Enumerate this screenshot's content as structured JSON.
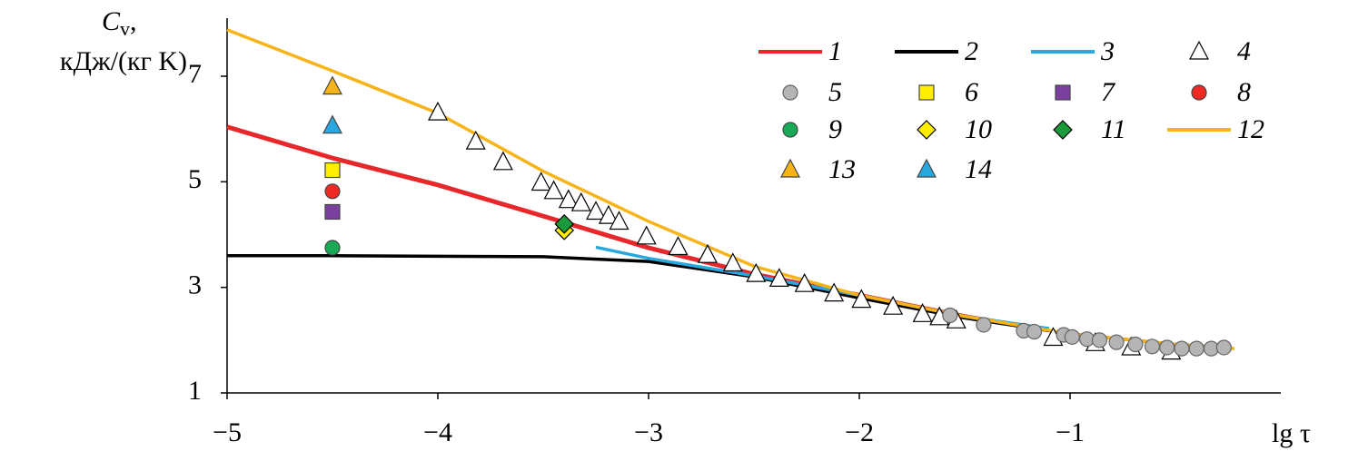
{
  "chart_data": {
    "type": "line",
    "xlabel": "lg τ",
    "ylabel_symbol": "C",
    "ylabel_subscript": "v",
    "ylabel_comma": ",",
    "ylabel_unit": "кДж/(кг K)",
    "xlim": [
      -5,
      0
    ],
    "ylim": [
      1,
      8.1
    ],
    "xticks": [
      {
        "value": -5,
        "label": "−5"
      },
      {
        "value": -4,
        "label": "−4"
      },
      {
        "value": -3,
        "label": "−3"
      },
      {
        "value": -2,
        "label": "−2"
      },
      {
        "value": -1,
        "label": "−1"
      }
    ],
    "yticks": [
      1,
      3,
      5,
      7
    ],
    "series": [
      {
        "name": "1",
        "color": "#e8272a",
        "marker": "none",
        "x": [
          -5,
          -4.5,
          -4,
          -3.5,
          -3,
          -2.5,
          -2,
          -1.5,
          -1.2
        ],
        "values": [
          6.04,
          5.45,
          4.94,
          4.35,
          3.75,
          3.25,
          2.85,
          2.45,
          2.25
        ]
      },
      {
        "name": "2",
        "color": "#000000",
        "marker": "none",
        "x": [
          -5,
          -4.5,
          -4,
          -3.5,
          -3,
          -2.5,
          -2,
          -1.5,
          -1,
          -0.5,
          -0.3
        ],
        "values": [
          3.6,
          3.6,
          3.59,
          3.58,
          3.49,
          3.2,
          2.8,
          2.42,
          2.12,
          1.92,
          1.87
        ]
      },
      {
        "name": "3",
        "color": "#29a8e0",
        "marker": "none",
        "x": [
          -3.25,
          -3,
          -2.5,
          -2,
          -1.5,
          -1.1
        ],
        "values": [
          3.76,
          3.55,
          3.22,
          2.85,
          2.45,
          2.22
        ]
      },
      {
        "name": "4",
        "color": "#ffffff",
        "marker": "triangle",
        "x": [
          -4,
          -3.82,
          -3.69,
          -3.51,
          -3.45,
          -3.38,
          -3.32,
          -3.25,
          -3.19,
          -3.14,
          -3.01,
          -2.86,
          -2.72,
          -2.6,
          -2.49,
          -2.38,
          -2.26,
          -2.12,
          -1.99,
          -1.84,
          -1.7,
          -1.62,
          -1.54,
          -1.08,
          -0.88,
          -0.71,
          -0.52
        ],
        "values": [
          6.31,
          5.76,
          5.37,
          4.98,
          4.82,
          4.65,
          4.59,
          4.43,
          4.35,
          4.24,
          3.96,
          3.76,
          3.61,
          3.45,
          3.25,
          3.16,
          3.06,
          2.88,
          2.76,
          2.63,
          2.49,
          2.43,
          2.37,
          2.04,
          1.94,
          1.86,
          1.78
        ]
      },
      {
        "name": "5",
        "color": "#b4b4b4",
        "marker": "circle",
        "x": [
          -1.57,
          -1.41,
          -1.22,
          -1.17,
          -1.03,
          -0.99,
          -0.92,
          -0.86,
          -0.78,
          -0.69,
          -0.61,
          -0.54,
          -0.47,
          -0.4,
          -0.33,
          -0.27
        ],
        "values": [
          2.47,
          2.29,
          2.18,
          2.16,
          2.1,
          2.06,
          2.02,
          2.0,
          1.96,
          1.92,
          1.88,
          1.86,
          1.84,
          1.84,
          1.84,
          1.86
        ]
      },
      {
        "name": "6",
        "color": "#ffee00",
        "marker": "square",
        "x": [
          -4.5
        ],
        "values": [
          5.22
        ]
      },
      {
        "name": "7",
        "color": "#7b3f9e",
        "marker": "square",
        "x": [
          -4.5
        ],
        "values": [
          4.43
        ]
      },
      {
        "name": "8",
        "color": "#ee2a24",
        "marker": "circle",
        "x": [
          -4.5
        ],
        "values": [
          4.82
        ]
      },
      {
        "name": "9",
        "color": "#1aaa55",
        "marker": "circle",
        "x": [
          -4.5
        ],
        "values": [
          3.75
        ]
      },
      {
        "name": "10",
        "color": "#ffee00",
        "marker": "diamond",
        "x": [
          -3.4
        ],
        "values": [
          4.08
        ]
      },
      {
        "name": "11",
        "color": "#1a9a3a",
        "marker": "diamond",
        "x": [
          -3.4
        ],
        "values": [
          4.2
        ]
      },
      {
        "name": "12",
        "color": "#f7b418",
        "marker": "none",
        "x": [
          -5,
          -4.5,
          -4,
          -3.5,
          -3,
          -2.5,
          -2,
          -1.5,
          -1,
          -0.5,
          -0.22
        ],
        "values": [
          7.88,
          7.1,
          6.3,
          5.2,
          4.25,
          3.4,
          2.85,
          2.45,
          2.12,
          1.92,
          1.84
        ]
      },
      {
        "name": "13",
        "color": "#f7b418",
        "marker": "triangle",
        "x": [
          -4.5
        ],
        "values": [
          6.8
        ]
      },
      {
        "name": "14",
        "color": "#29a8e0",
        "marker": "triangle",
        "x": [
          -4.5
        ],
        "values": [
          6.06
        ]
      }
    ]
  }
}
